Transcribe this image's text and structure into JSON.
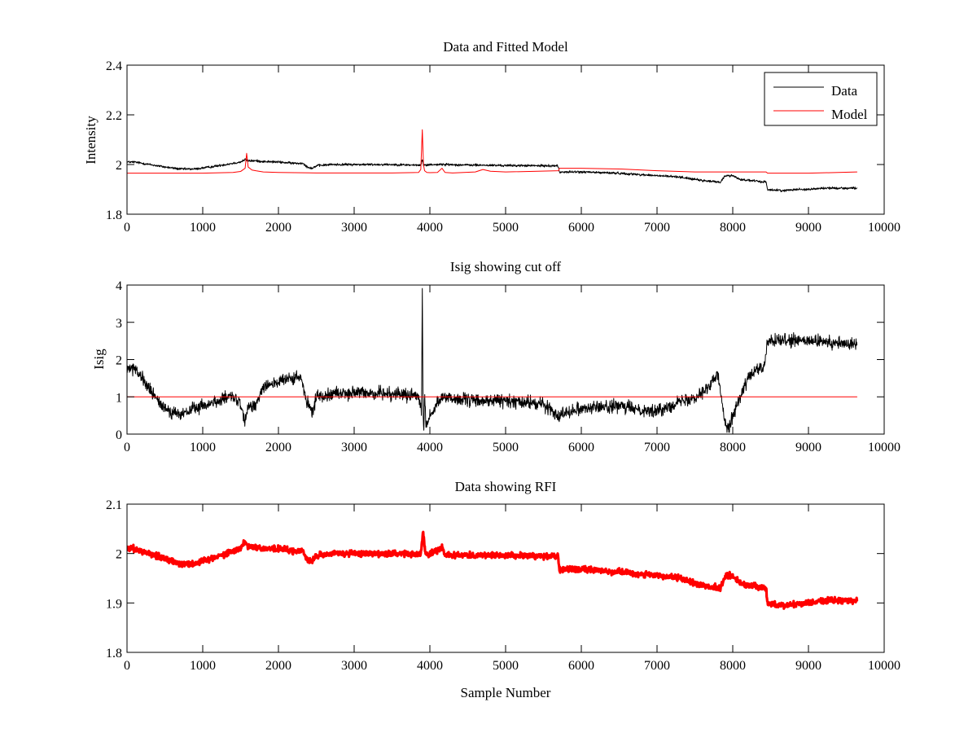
{
  "figure": {
    "background": "#ffffff"
  },
  "chart_data": [
    {
      "type": "line",
      "title": "Data and Fitted Model",
      "xlabel": "",
      "ylabel": "Intensity",
      "xlim": [
        0,
        10000
      ],
      "ylim": [
        1.8,
        2.4
      ],
      "xticks": [
        0,
        1000,
        2000,
        3000,
        4000,
        5000,
        6000,
        7000,
        8000,
        9000,
        10000
      ],
      "yticks": [
        1.8,
        2.0,
        2.2,
        2.4
      ],
      "ytick_labels": [
        "1.8",
        "2",
        "2.2",
        "2.4"
      ],
      "grid": false,
      "legend": "top-right",
      "series": [
        {
          "name": "Data",
          "color": "#000000",
          "noise": 0.004,
          "x": [
            0,
            100,
            300,
            500,
            700,
            900,
            1100,
            1300,
            1500,
            1560,
            1600,
            1700,
            1800,
            2000,
            2200,
            2330,
            2380,
            2450,
            2500,
            2700,
            3000,
            3500,
            3880,
            3900,
            3915,
            3935,
            3960,
            4000,
            4200,
            4500,
            5000,
            5500,
            5690,
            5710,
            6000,
            6500,
            7000,
            7300,
            7600,
            7800,
            7840,
            7900,
            8000,
            8100,
            8400,
            8440,
            8460,
            8500,
            8700,
            8800,
            9000,
            9200,
            9400,
            9640
          ],
          "y": [
            2.01,
            2.01,
            2.0,
            1.99,
            1.982,
            1.982,
            1.99,
            2.0,
            2.01,
            2.02,
            2.015,
            2.015,
            2.012,
            2.01,
            2.005,
            2.005,
            1.99,
            1.985,
            1.995,
            2.0,
            2.0,
            2.0,
            1.997,
            2.02,
            2.0,
            1.998,
            1.997,
            2.0,
            2.0,
            1.998,
            1.996,
            1.995,
            1.995,
            1.97,
            1.97,
            1.965,
            1.955,
            1.95,
            1.935,
            1.93,
            1.93,
            1.955,
            1.955,
            1.94,
            1.93,
            1.93,
            1.9,
            1.898,
            1.895,
            1.9,
            1.9,
            1.905,
            1.905,
            1.905
          ]
        },
        {
          "name": "Model",
          "color": "#ff0000",
          "noise": 0,
          "x": [
            0,
            1000,
            1400,
            1500,
            1560,
            1580,
            1600,
            1650,
            1700,
            1800,
            2000,
            2500,
            3000,
            3500,
            3850,
            3880,
            3900,
            3915,
            3930,
            3960,
            4000,
            4100,
            4160,
            4200,
            4300,
            4600,
            4700,
            4800,
            5000,
            5700,
            5710,
            6000,
            6500,
            7000,
            7500,
            8000,
            8440,
            8460,
            9000,
            9640
          ],
          "y": [
            1.965,
            1.965,
            1.968,
            1.972,
            1.985,
            2.045,
            1.99,
            1.978,
            1.975,
            1.97,
            1.968,
            1.966,
            1.966,
            1.966,
            1.968,
            1.98,
            2.14,
            2.0,
            1.975,
            1.968,
            1.967,
            1.968,
            1.985,
            1.968,
            1.966,
            1.97,
            1.98,
            1.973,
            1.97,
            1.975,
            1.985,
            1.985,
            1.982,
            1.975,
            1.97,
            1.97,
            1.97,
            1.965,
            1.965,
            1.97
          ]
        }
      ]
    },
    {
      "type": "line",
      "title": "Isig showing cut off",
      "xlabel": "",
      "ylabel": "Isig",
      "xlim": [
        0,
        10000
      ],
      "ylim": [
        0,
        4
      ],
      "xticks": [
        0,
        1000,
        2000,
        3000,
        4000,
        5000,
        6000,
        7000,
        8000,
        9000,
        10000
      ],
      "yticks": [
        0,
        1,
        2,
        3,
        4
      ],
      "ytick_labels": [
        "0",
        "1",
        "2",
        "3",
        "4"
      ],
      "grid": false,
      "legend": "none",
      "series": [
        {
          "name": "",
          "color": "#000000",
          "noise": 0.15,
          "x": [
            0,
            100,
            200,
            300,
            400,
            500,
            600,
            700,
            800,
            900,
            1000,
            1200,
            1400,
            1500,
            1550,
            1600,
            1700,
            1800,
            2000,
            2200,
            2300,
            2380,
            2450,
            2500,
            2700,
            3000,
            3500,
            3850,
            3890,
            3900,
            3910,
            3920,
            3930,
            3950,
            4000,
            4050,
            4100,
            4200,
            4500,
            5000,
            5500,
            5700,
            5800,
            6000,
            6500,
            7000,
            7200,
            7500,
            7700,
            7800,
            7850,
            7900,
            7950,
            8000,
            8100,
            8200,
            8300,
            8420,
            8450,
            8500,
            9000,
            9640
          ],
          "y": [
            1.8,
            1.7,
            1.5,
            1.2,
            0.9,
            0.7,
            0.6,
            0.5,
            0.6,
            0.7,
            0.75,
            0.9,
            1.0,
            0.8,
            0.3,
            0.7,
            0.8,
            1.3,
            1.4,
            1.5,
            1.5,
            0.8,
            0.6,
            1.0,
            1.1,
            1.1,
            1.1,
            1.0,
            0.6,
            3.8,
            0.5,
            0.05,
            1.0,
            0.2,
            0.5,
            0.6,
            0.9,
            1.0,
            0.9,
            0.9,
            0.8,
            0.5,
            0.6,
            0.7,
            0.75,
            0.6,
            0.8,
            1.0,
            1.3,
            1.6,
            1.0,
            0.3,
            0.2,
            0.5,
            1.0,
            1.5,
            1.7,
            1.8,
            2.4,
            2.5,
            2.5,
            2.4
          ]
        },
        {
          "name": "",
          "color": "#ff0000",
          "noise": 0,
          "x": [
            0,
            9640
          ],
          "y": [
            1,
            1
          ]
        }
      ]
    },
    {
      "type": "scatter",
      "title": "Data showing RFI",
      "xlabel": "Sample Number",
      "ylabel": "",
      "xlim": [
        0,
        10000
      ],
      "ylim": [
        1.8,
        2.1
      ],
      "xticks": [
        0,
        1000,
        2000,
        3000,
        4000,
        5000,
        6000,
        7000,
        8000,
        9000,
        10000
      ],
      "yticks": [
        1.8,
        1.9,
        2.0,
        2.1
      ],
      "ytick_labels": [
        "1.8",
        "1.9",
        "2",
        "2.1"
      ],
      "grid": false,
      "legend": "none",
      "series": [
        {
          "name": "",
          "color": "#ff0000",
          "noise": 0.005,
          "x": [
            0,
            100,
            300,
            500,
            700,
            900,
            1100,
            1300,
            1500,
            1560,
            1600,
            1700,
            1800,
            2000,
            2200,
            2330,
            2380,
            2450,
            2500,
            2700,
            3000,
            3500,
            3880,
            3910,
            3940,
            4000,
            4160,
            4200,
            4500,
            5000,
            5500,
            5690,
            5710,
            6000,
            6500,
            7000,
            7300,
            7600,
            7800,
            7840,
            7900,
            8000,
            8100,
            8400,
            8440,
            8460,
            8500,
            8700,
            8800,
            9000,
            9200,
            9400,
            9640
          ],
          "y": [
            2.01,
            2.01,
            2.0,
            1.99,
            1.98,
            1.98,
            1.99,
            2.0,
            2.01,
            2.025,
            2.015,
            2.013,
            2.01,
            2.01,
            2.005,
            2.005,
            1.985,
            1.985,
            1.995,
            2.0,
            2.0,
            2.0,
            1.998,
            2.045,
            2.0,
            1.998,
            2.012,
            1.998,
            1.997,
            1.996,
            1.995,
            1.995,
            1.968,
            1.968,
            1.963,
            1.955,
            1.95,
            1.935,
            1.93,
            1.93,
            1.955,
            1.955,
            1.94,
            1.93,
            1.928,
            1.9,
            1.898,
            1.895,
            1.898,
            1.9,
            1.905,
            1.905,
            1.905
          ]
        }
      ]
    }
  ]
}
